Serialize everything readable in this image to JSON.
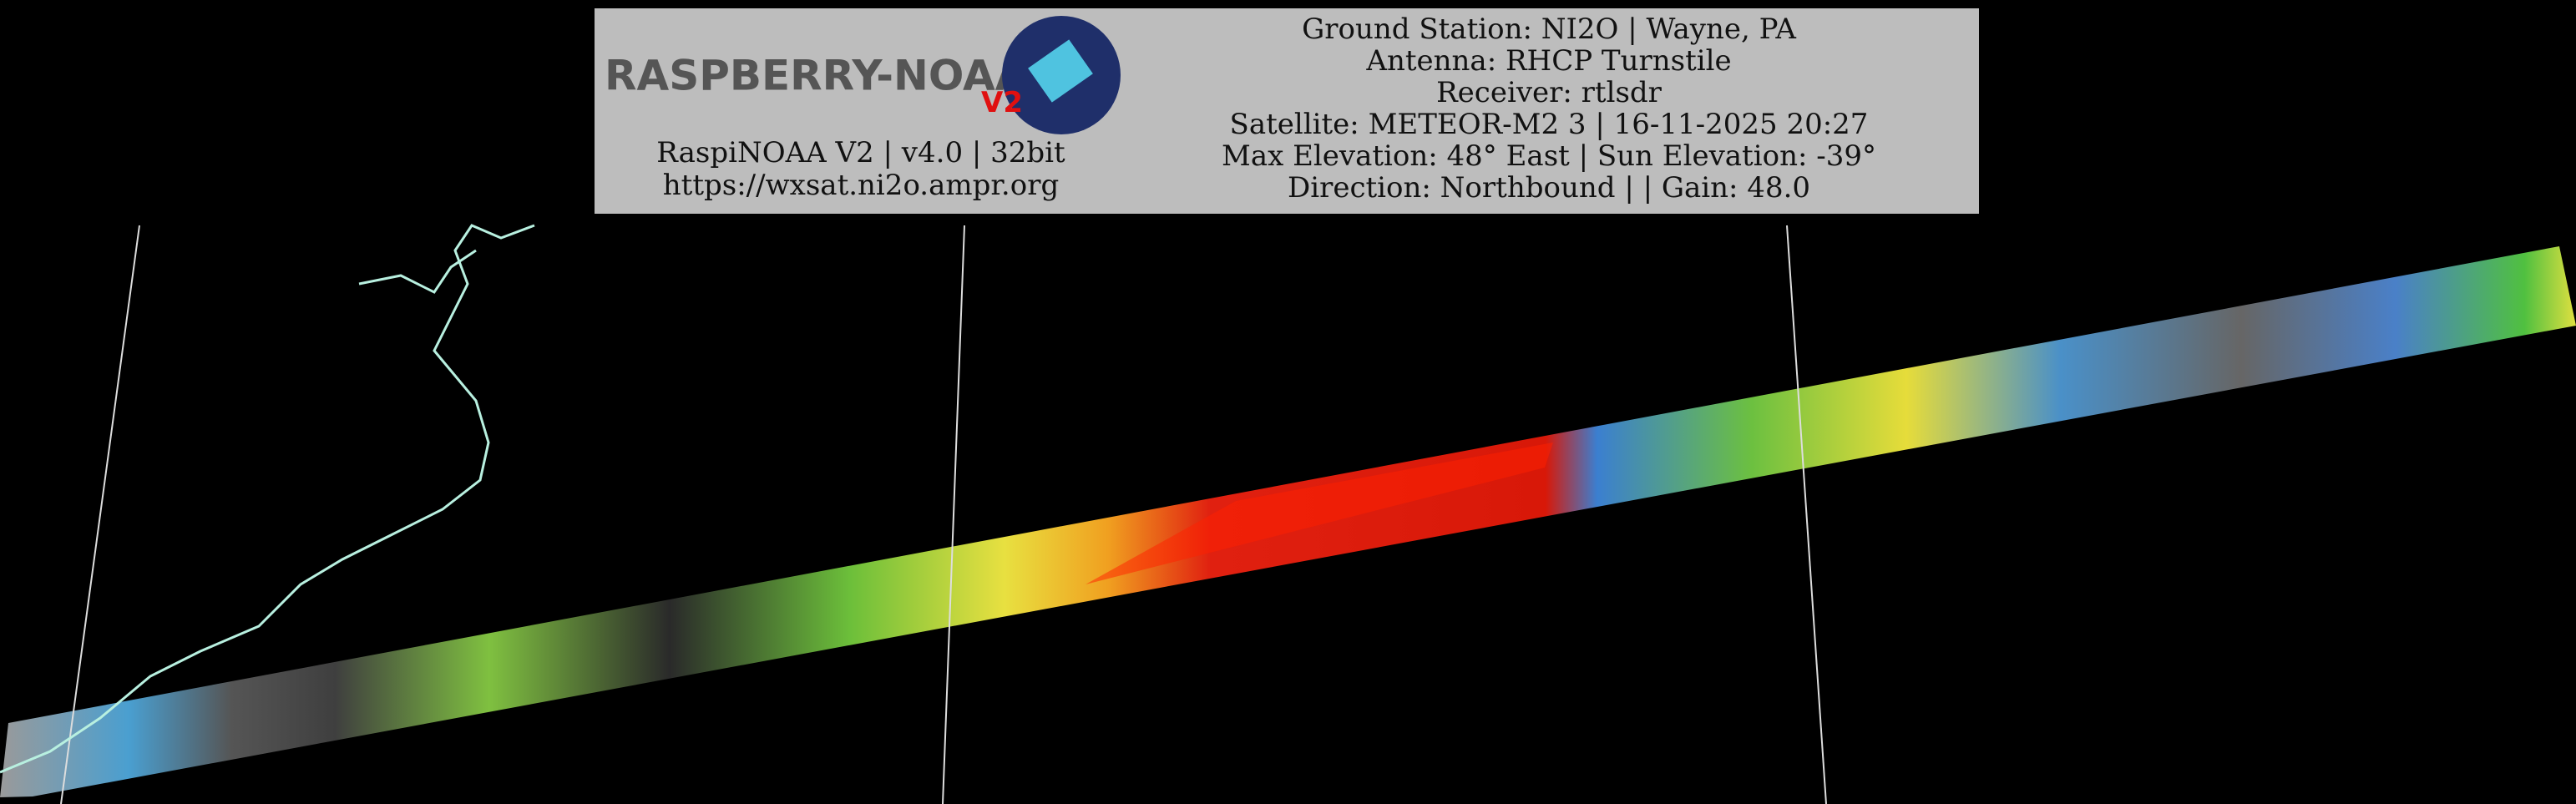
{
  "header": {
    "logo_text": "RASPBERRY-NOAA",
    "logo_badge": "V2",
    "software": "RaspiNOAA V2 | v4.0 | 32bit",
    "url": "https://wxsat.ni2o.ampr.org",
    "details": [
      "Ground Station: NI2O | Wayne, PA",
      "Antenna: RHCP Turnstile",
      "Receiver: rtlsdr",
      "Satellite: METEOR-M2 3 | 16-11-2025 20:27",
      "Max Elevation: 48° East | Sun Elevation: -39°",
      "Direction: Northbound | | Gain: 48.0"
    ]
  }
}
